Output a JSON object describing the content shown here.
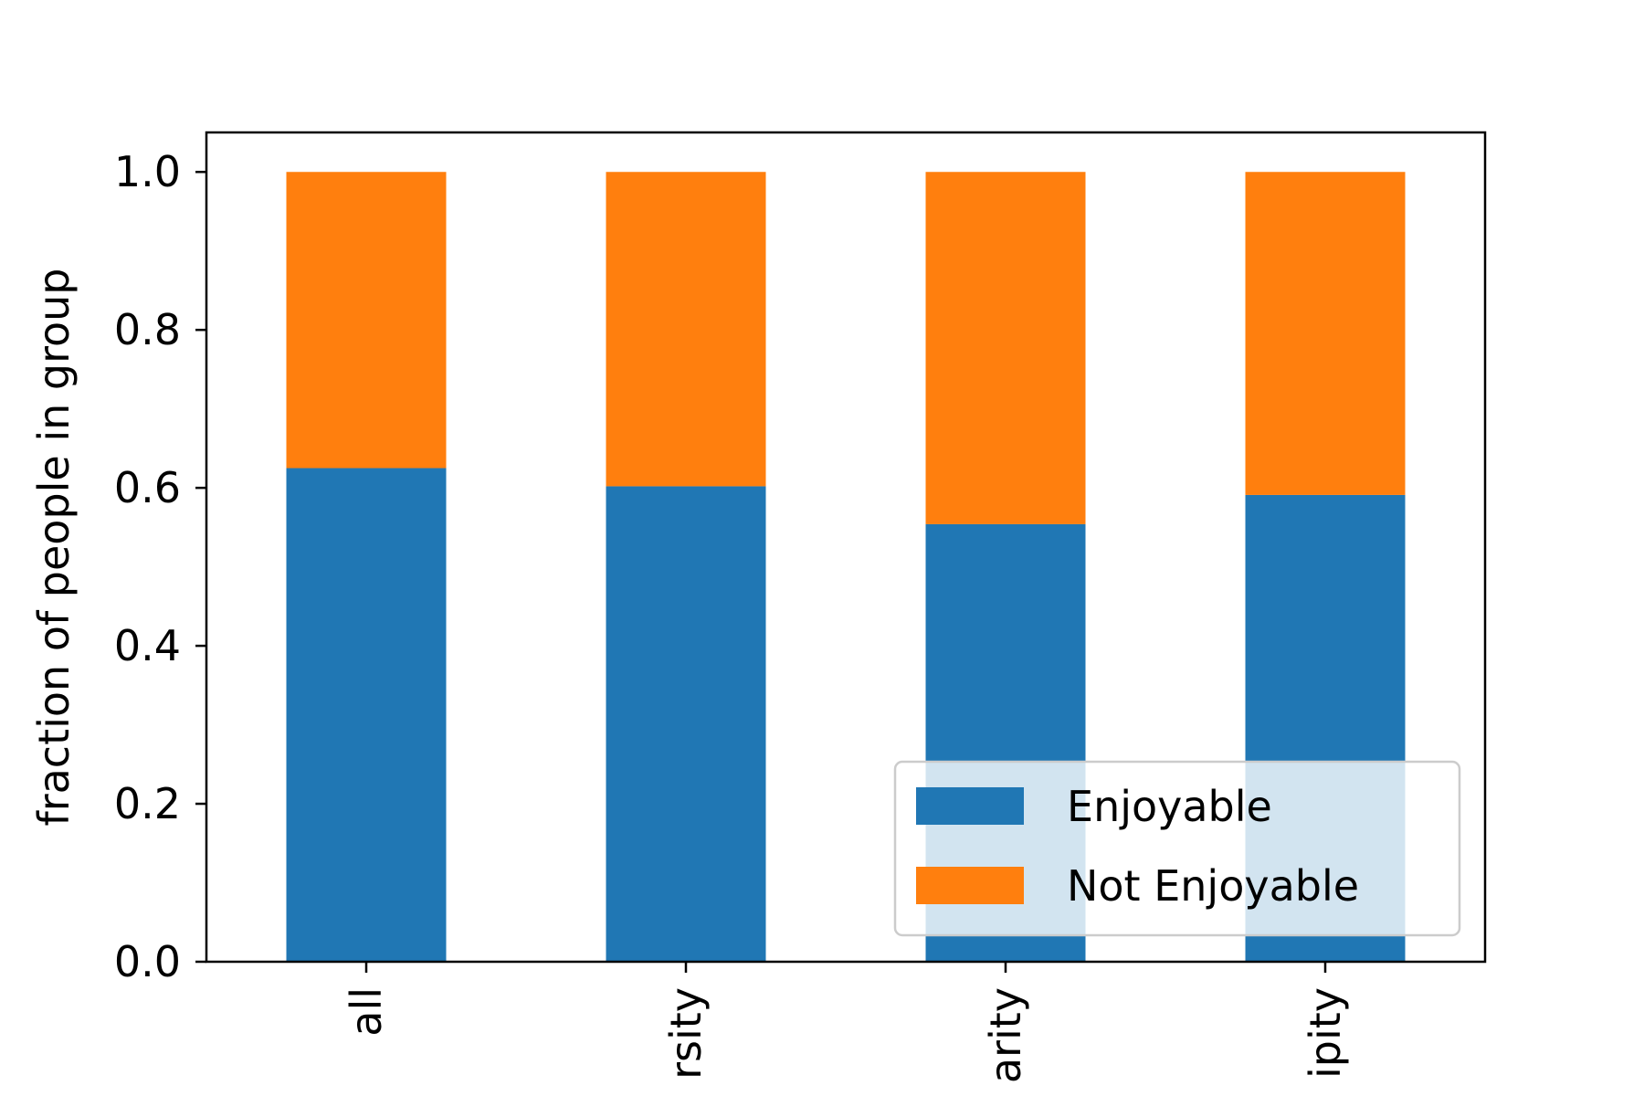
{
  "chart_data": {
    "type": "bar",
    "stacked": true,
    "categories": [
      "all",
      "rsity",
      "arity",
      "ipity"
    ],
    "series": [
      {
        "name": "Enjoyable",
        "values": [
          0.625,
          0.602,
          0.554,
          0.591
        ],
        "color": "#2077b4"
      },
      {
        "name": "Not Enjoyable",
        "values": [
          0.375,
          0.398,
          0.446,
          0.409
        ],
        "color": "#ff7f0e"
      }
    ],
    "title": "",
    "xlabel": "",
    "ylabel": "fraction of people in group",
    "ylim": [
      0,
      1.05
    ],
    "yticks": [
      "0.0",
      "0.2",
      "0.4",
      "0.6",
      "0.8",
      "1.0"
    ],
    "ytick_values": [
      0.0,
      0.2,
      0.4,
      0.6,
      0.8,
      1.0
    ],
    "grid": false,
    "legend_position": "lower-right"
  }
}
